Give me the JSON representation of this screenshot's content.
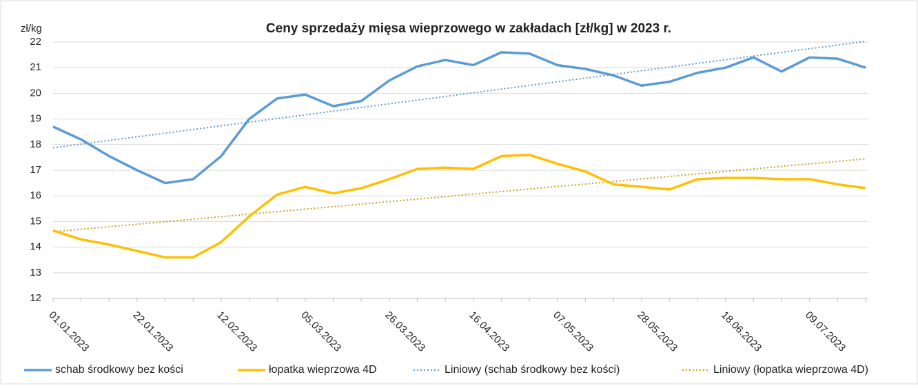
{
  "chart_data": {
    "type": "line",
    "title": "Ceny sprzedaży mięsa wieprzowego w zakładach [zł/kg] w 2023 r.",
    "y_label": "zł/kg",
    "categories": [
      "01.01.2023",
      null,
      null,
      "22.01.2023",
      null,
      null,
      "12.02.2023",
      null,
      null,
      "05.03.2023",
      null,
      null,
      "26.03.2023",
      null,
      null,
      "16.04.2023",
      null,
      null,
      "07.05.2023",
      null,
      null,
      "28.05.2023",
      null,
      null,
      "18.06.2023",
      null,
      null,
      "09.07.2023",
      null,
      null
    ],
    "series": [
      {
        "name": "schab środkowy bez kości",
        "color": "#5b9bd5",
        "values": [
          18.7,
          18.2,
          17.55,
          17.0,
          16.5,
          16.65,
          17.55,
          19.0,
          19.8,
          19.95,
          19.5,
          19.7,
          20.5,
          21.05,
          21.3,
          21.1,
          21.6,
          21.55,
          21.1,
          20.95,
          20.7,
          20.3,
          20.45,
          20.8,
          21.0,
          21.4,
          20.85,
          21.4,
          21.35,
          21.0
        ]
      },
      {
        "name": "łopatka wieprzowa 4D",
        "color": "#ffc000",
        "values": [
          14.65,
          14.3,
          14.1,
          13.85,
          13.6,
          13.6,
          14.2,
          15.2,
          16.05,
          16.35,
          16.1,
          16.3,
          16.65,
          17.05,
          17.1,
          17.05,
          17.55,
          17.6,
          17.25,
          16.95,
          16.45,
          16.35,
          16.25,
          16.65,
          16.7,
          16.7,
          16.65,
          16.65,
          16.45,
          16.3
        ]
      }
    ],
    "trendlines": [
      {
        "name": "Liniowy (schab środkowy bez kości)",
        "color": "#5b9bd5",
        "series": 0
      },
      {
        "name": "Liniowy (łopatka wieprzowa 4D)",
        "color": "#c9a227",
        "series": 1
      }
    ],
    "ylim": [
      12,
      22
    ],
    "yticks": [
      12,
      13,
      14,
      15,
      16,
      17,
      18,
      19,
      20,
      21,
      22
    ],
    "grid": true,
    "legend": "bottom"
  }
}
